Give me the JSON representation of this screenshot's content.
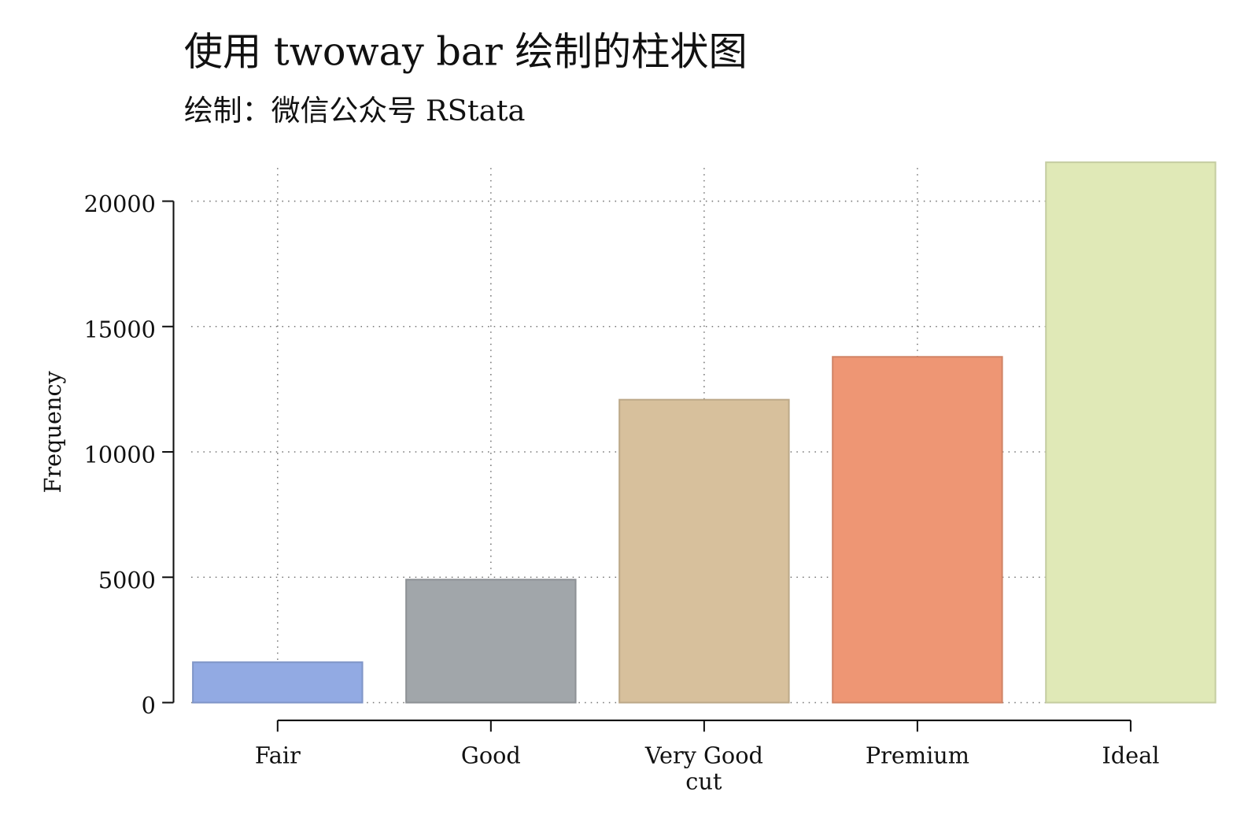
{
  "chart_data": {
    "type": "bar",
    "title": "使用 twoway bar 绘制的柱状图",
    "subtitle": "绘制：微信公众号 RStata",
    "x_label": "cut",
    "y_label": "Frequency",
    "categories": [
      "Fair",
      "Good",
      "Very Good",
      "Premium",
      "Ideal"
    ],
    "values": [
      1610,
      4906,
      12082,
      13791,
      21551
    ],
    "colors": [
      "#92aae3",
      "#a1a6aa",
      "#d7c09c",
      "#ee9674",
      "#e0e9b7"
    ],
    "ylim": [
      0,
      20000
    ],
    "yticks": [
      0,
      5000,
      10000,
      15000,
      20000
    ],
    "grid": true
  }
}
